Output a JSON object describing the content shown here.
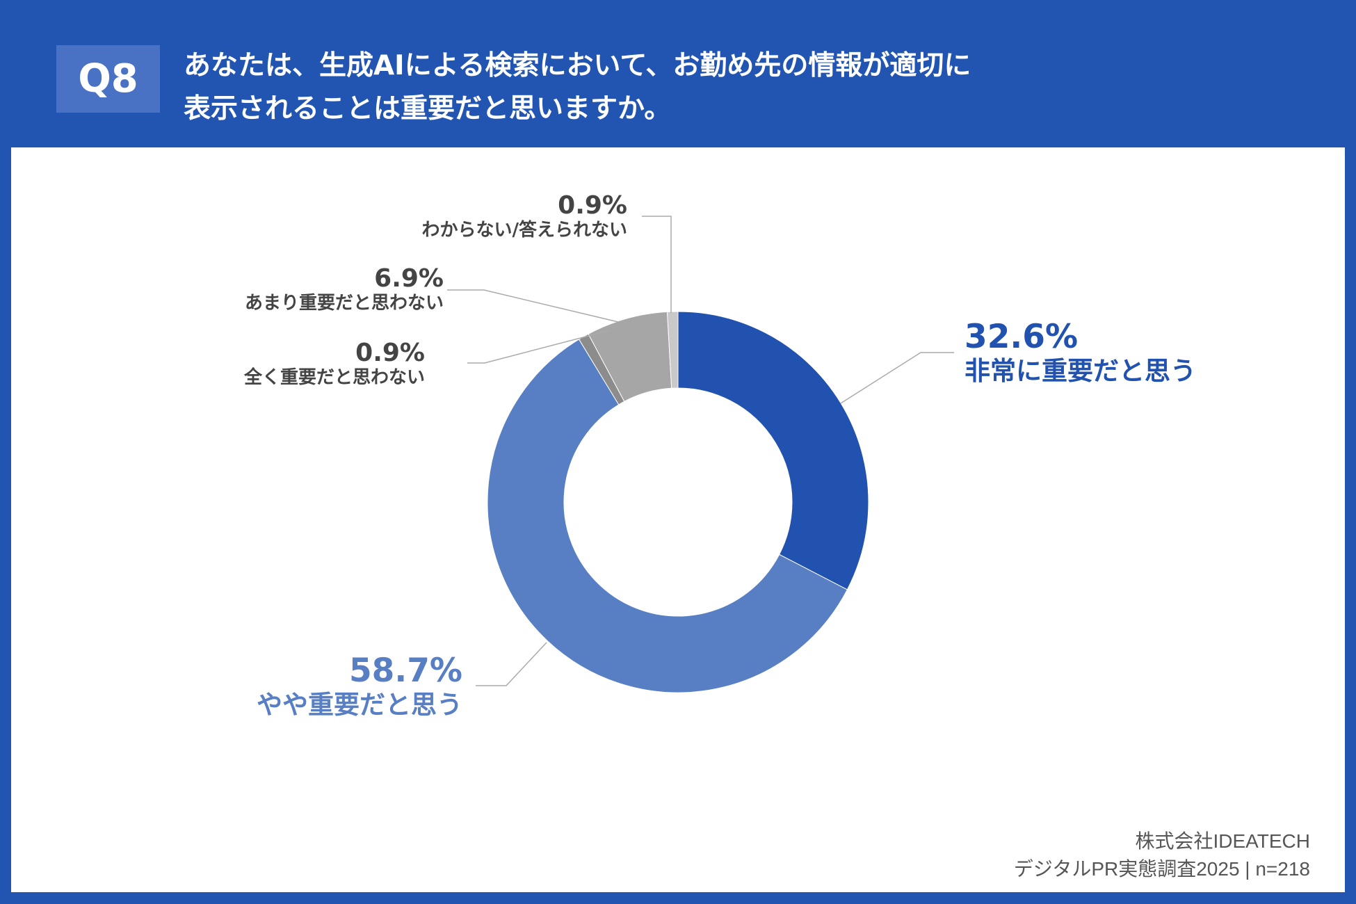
{
  "header": {
    "question_no": "Q8",
    "title_line1": "あなたは、生成AIによる検索において、お勤め先の情報が適切に",
    "title_line2": "表示されることは重要だと思いますか。"
  },
  "chart_data": {
    "type": "pie",
    "donut": true,
    "start": "top",
    "direction": "clockwise",
    "slices": [
      {
        "label": "非常に重要だと思う",
        "value": 32.6,
        "value_label": "32.6%",
        "color": "#2152b0"
      },
      {
        "label": "やや重要だと思う",
        "value": 58.7,
        "value_label": "58.7%",
        "color": "#587fc4"
      },
      {
        "label": "全く重要だと思わない",
        "value": 0.9,
        "value_label": "0.9%",
        "color": "#8c8c8c"
      },
      {
        "label": "あまり重要だと思わない",
        "value": 6.9,
        "value_label": "6.9%",
        "color": "#a6a6a6"
      },
      {
        "label": "わからない/答えられない",
        "value": 0.9,
        "value_label": "0.9%",
        "color": "#c9c9c9"
      }
    ]
  },
  "footer": {
    "company": "株式会社IDEATECH",
    "source": "デジタルPR実態調査2025 | n=218"
  }
}
